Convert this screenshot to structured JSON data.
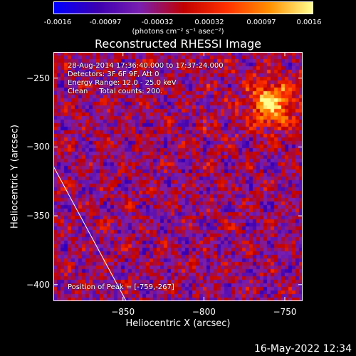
{
  "chart_data": {
    "type": "heatmap",
    "title": "Reconstructed RHESSI Image",
    "xlabel": "Heliocentric X (arcsec)",
    "ylabel": "Heliocentric Y (arcsec)",
    "xlim": [
      -893,
      -739
    ],
    "ylim": [
      -412,
      -231
    ],
    "x_ticks": [
      -850,
      -800,
      -750
    ],
    "y_ticks": [
      -250,
      -300,
      -350,
      -400
    ],
    "colorbar": {
      "ticks": [
        "-0.0016",
        "-0.00097",
        "-0.00032",
        "0.00032",
        "0.00097",
        "0.0016"
      ],
      "min": -0.0016,
      "max": 0.0016,
      "unit_label": "(photons cm⁻² s⁻¹ asec⁻²)",
      "colors": [
        "#0000ff",
        "#3b00b0",
        "#7a1fb0",
        "#c00000",
        "#ff3000",
        "#ff9000",
        "#ffff90"
      ]
    },
    "annotations": [
      "28-Aug-2014 17:36:40.000 to 17:37:24.000",
      "Detectors: 3F 6F 9F, Att 0",
      "Energy Range: 12.0 - 25.0 keV",
      "Clean     Total counts: 200.",
      "Position of Peak = [-759,-267]"
    ],
    "peak": {
      "x": -759,
      "y": -267
    },
    "limb_line": {
      "x": [
        -893,
        -848
      ],
      "y": [
        -314,
        -412
      ]
    }
  },
  "footer": {
    "timestamp": "16-May-2022 12:34"
  }
}
